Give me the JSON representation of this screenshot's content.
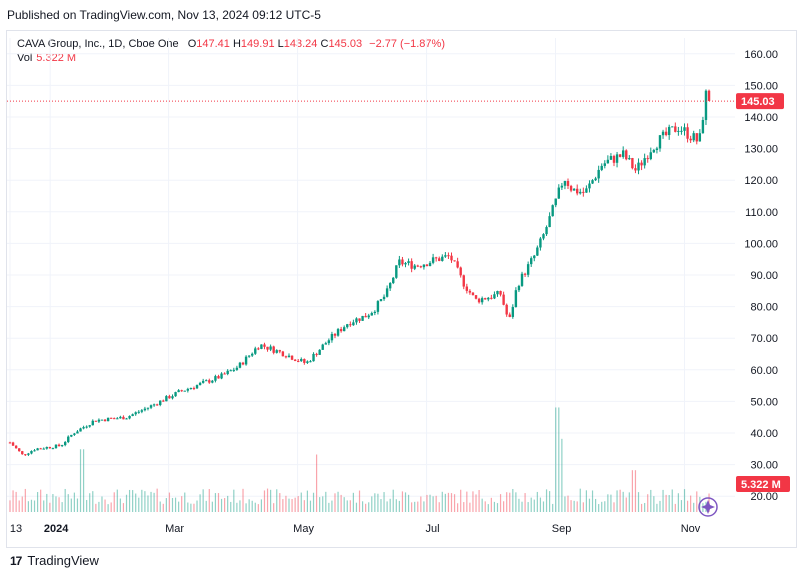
{
  "header": {
    "published": "Published on TradingView.com, Nov 13, 2024 09:12 UTC-5"
  },
  "legend": {
    "symbol": "CAVA Group, Inc., 1D, Cboe One",
    "open_label": "O",
    "open": "147.41",
    "high_label": "H",
    "high": "149.91",
    "low_label": "L",
    "low": "143.24",
    "close_label": "C",
    "close": "145.03",
    "change": "−2.77 (−1.87%)",
    "vol_label": "Vol",
    "vol": "5.322 M"
  },
  "badges": {
    "price": "145.03",
    "volume": "5.322 M"
  },
  "footer": {
    "logo": "17",
    "brand": "TradingView"
  },
  "colors": {
    "up": "#089981",
    "down": "#f23645",
    "grid": "#f0f3fa",
    "axis_text": "#131722"
  },
  "chart_data": {
    "type": "candlestick",
    "title": "CAVA Group, Inc., 1D, Cboe One",
    "ylim": [
      15,
      165
    ],
    "y_ticks": [
      20,
      30,
      40,
      50,
      60,
      70,
      80,
      90,
      100,
      110,
      120,
      130,
      140,
      150,
      160
    ],
    "y_tick_labels": [
      "20.00",
      "30.00",
      "40.00",
      "50.00",
      "60.00",
      "70.00",
      "80.00",
      "90.00",
      "100.00",
      "110.00",
      "120.00",
      "130.00",
      "140.00",
      "150.00",
      "160.00"
    ],
    "x_tick_labels": [
      "13",
      "2024",
      "Mar",
      "May",
      "Jul",
      "Sep",
      "Nov"
    ],
    "x_tick_days": [
      0,
      19,
      75,
      136,
      197,
      258,
      319
    ],
    "days_span": 332,
    "last_price": 145.03,
    "last_volume_m": 5.322,
    "price_series": [
      {
        "day": 0,
        "close": 37
      },
      {
        "day": 6,
        "close": 33
      },
      {
        "day": 12,
        "close": 35
      },
      {
        "day": 24,
        "close": 36
      },
      {
        "day": 30,
        "close": 40
      },
      {
        "day": 40,
        "close": 44
      },
      {
        "day": 55,
        "close": 45
      },
      {
        "day": 65,
        "close": 48
      },
      {
        "day": 80,
        "close": 53
      },
      {
        "day": 100,
        "close": 58
      },
      {
        "day": 108,
        "close": 61
      },
      {
        "day": 118,
        "close": 68
      },
      {
        "day": 130,
        "close": 65
      },
      {
        "day": 140,
        "close": 62
      },
      {
        "day": 150,
        "close": 69
      },
      {
        "day": 160,
        "close": 75
      },
      {
        "day": 168,
        "close": 77
      },
      {
        "day": 172,
        "close": 79
      },
      {
        "day": 178,
        "close": 84
      },
      {
        "day": 184,
        "close": 94
      },
      {
        "day": 192,
        "close": 93
      },
      {
        "day": 202,
        "close": 95
      },
      {
        "day": 208,
        "close": 96
      },
      {
        "day": 214,
        "close": 88
      },
      {
        "day": 220,
        "close": 82
      },
      {
        "day": 232,
        "close": 84
      },
      {
        "day": 236,
        "close": 75
      },
      {
        "day": 240,
        "close": 87
      },
      {
        "day": 248,
        "close": 96
      },
      {
        "day": 252,
        "close": 102
      },
      {
        "day": 258,
        "close": 113
      },
      {
        "day": 262,
        "close": 121
      },
      {
        "day": 266,
        "close": 117
      },
      {
        "day": 272,
        "close": 116
      },
      {
        "day": 280,
        "close": 125
      },
      {
        "day": 286,
        "close": 127
      },
      {
        "day": 290,
        "close": 128
      },
      {
        "day": 296,
        "close": 123
      },
      {
        "day": 304,
        "close": 131
      },
      {
        "day": 310,
        "close": 134
      },
      {
        "day": 316,
        "close": 137
      },
      {
        "day": 322,
        "close": 134
      },
      {
        "day": 326,
        "close": 132
      },
      {
        "day": 329,
        "close": 147
      },
      {
        "day": 332,
        "close": 145.03
      }
    ],
    "volume_spikes_m": [
      {
        "day": 34,
        "volume": 12
      },
      {
        "day": 145,
        "volume": 11
      },
      {
        "day": 259,
        "volume": 20
      },
      {
        "day": 261,
        "volume": 14
      },
      {
        "day": 295,
        "volume": 8
      }
    ]
  }
}
